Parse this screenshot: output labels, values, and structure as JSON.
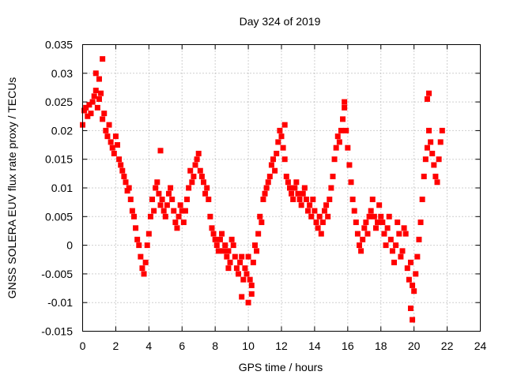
{
  "chart_data": {
    "type": "scatter",
    "title": "Day 324 of 2019",
    "xlabel": "GPS time / hours",
    "ylabel": "GNSS SOLERA EUV flux rate proxy / TECUs",
    "xlim": [
      0,
      24
    ],
    "ylim": [
      -0.015,
      0.035
    ],
    "xticks": [
      "0",
      "2",
      "4",
      "6",
      "8",
      "10",
      "12",
      "14",
      "16",
      "18",
      "20",
      "22",
      "24"
    ],
    "yticks": [
      "-0.015",
      "-0.01",
      "-0.005",
      "0",
      "0.005",
      "0.01",
      "0.015",
      "0.02",
      "0.025",
      "0.03",
      "0.035"
    ],
    "grid": true,
    "legend": "none",
    "marker": "square",
    "color": "#ff0000",
    "series": [
      {
        "x": [
          0.0,
          0.1,
          0.2,
          0.3,
          0.4,
          0.5,
          0.6,
          0.7,
          0.8,
          0.9,
          1.0,
          1.1,
          1.2,
          1.3,
          1.4,
          1.5,
          1.6,
          1.7,
          1.8,
          1.9,
          2.0,
          2.1,
          2.2,
          2.3,
          2.4,
          2.5,
          2.6,
          2.7,
          2.8,
          2.9,
          3.0,
          3.1,
          3.2,
          3.3,
          3.4,
          3.5,
          3.6,
          3.7,
          3.8,
          3.9,
          4.0,
          4.1,
          4.2,
          4.3,
          4.4,
          4.5,
          4.6,
          4.7,
          4.8,
          4.9,
          5.0,
          5.1,
          5.2,
          5.3,
          5.4,
          5.5,
          5.6,
          5.7,
          5.8,
          5.9,
          6.0,
          6.1,
          6.2,
          6.3,
          6.4,
          6.5,
          6.6,
          6.7,
          6.8,
          6.9,
          7.0,
          7.1,
          7.2,
          7.3,
          7.4,
          7.5,
          7.6,
          7.7,
          7.8,
          7.9,
          8.0,
          8.1,
          8.2,
          8.3,
          8.4,
          8.5,
          8.6,
          8.7,
          8.8,
          8.9,
          9.0,
          9.1,
          9.2,
          9.3,
          9.4,
          9.5,
          9.6,
          9.7,
          9.8,
          9.9,
          10.0,
          10.1,
          10.2,
          10.3,
          10.4,
          10.5,
          10.6,
          10.7,
          10.8,
          10.9,
          11.0,
          11.1,
          11.2,
          11.3,
          11.4,
          11.5,
          11.6,
          11.7,
          11.8,
          11.9,
          12.0,
          12.1,
          12.2,
          12.3,
          12.4,
          12.5,
          12.6,
          12.7,
          12.8,
          12.9,
          13.0,
          13.1,
          13.2,
          13.3,
          13.4,
          13.5,
          13.6,
          13.7,
          13.8,
          13.9,
          14.0,
          14.1,
          14.2,
          14.3,
          14.4,
          14.5,
          14.6,
          14.7,
          14.8,
          14.9,
          15.0,
          15.1,
          15.2,
          15.3,
          15.4,
          15.5,
          15.6,
          15.7,
          15.8,
          15.9,
          16.0,
          16.1,
          16.2,
          16.3,
          16.4,
          16.5,
          16.6,
          16.7,
          16.8,
          16.9,
          17.0,
          17.1,
          17.2,
          17.3,
          17.4,
          17.5,
          17.6,
          17.7,
          17.8,
          17.9,
          18.0,
          18.1,
          18.2,
          18.3,
          18.4,
          18.5,
          18.6,
          18.7,
          18.8,
          18.9,
          19.0,
          19.1,
          19.2,
          19.3,
          19.4,
          19.5,
          19.6,
          19.7,
          19.8,
          19.9,
          20.0,
          20.1,
          20.2,
          20.3,
          20.4,
          20.5,
          20.6,
          20.7,
          20.8,
          20.9,
          21.0,
          21.1,
          21.2,
          21.3,
          21.4,
          21.5,
          21.6,
          21.7,
          1.2,
          0.8,
          1.0,
          4.7,
          8.8,
          9.6,
          10.0,
          10.2,
          19.9,
          19.8,
          20.9,
          20.8,
          15.8,
          12.2
        ],
        "y": [
          0.021,
          0.0235,
          0.024,
          0.0225,
          0.0245,
          0.023,
          0.025,
          0.026,
          0.027,
          0.024,
          0.0255,
          0.0265,
          0.022,
          0.023,
          0.02,
          0.019,
          0.021,
          0.018,
          0.017,
          0.016,
          0.019,
          0.0175,
          0.015,
          0.014,
          0.013,
          0.012,
          0.011,
          0.0095,
          0.01,
          0.008,
          0.006,
          0.005,
          0.003,
          0.001,
          0.0,
          -0.002,
          -0.004,
          -0.005,
          -0.003,
          0.0,
          0.002,
          0.005,
          0.008,
          0.006,
          0.01,
          0.011,
          0.009,
          0.007,
          0.008,
          0.006,
          0.005,
          0.007,
          0.009,
          0.01,
          0.008,
          0.006,
          0.004,
          0.003,
          0.005,
          0.007,
          0.006,
          0.004,
          0.006,
          0.008,
          0.01,
          0.013,
          0.011,
          0.012,
          0.014,
          0.015,
          0.016,
          0.013,
          0.012,
          0.011,
          0.009,
          0.01,
          0.008,
          0.005,
          0.003,
          0.002,
          0.001,
          0.0,
          -0.001,
          0.001,
          0.002,
          -0.001,
          0.0,
          -0.002,
          -0.001,
          -0.003,
          0.001,
          0.0,
          -0.002,
          -0.004,
          -0.005,
          -0.003,
          -0.002,
          -0.006,
          -0.004,
          -0.005,
          -0.002,
          -0.006,
          -0.007,
          -0.003,
          0.0,
          -0.001,
          0.002,
          0.005,
          0.004,
          0.008,
          0.009,
          0.01,
          0.011,
          0.012,
          0.014,
          0.015,
          0.013,
          0.016,
          0.018,
          0.02,
          0.019,
          0.017,
          0.015,
          0.012,
          0.011,
          0.01,
          0.009,
          0.008,
          0.01,
          0.011,
          0.009,
          0.008,
          0.007,
          0.009,
          0.01,
          0.008,
          0.006,
          0.007,
          0.005,
          0.008,
          0.006,
          0.004,
          0.003,
          0.005,
          0.002,
          0.004,
          0.006,
          0.007,
          0.005,
          0.008,
          0.01,
          0.012,
          0.015,
          0.017,
          0.019,
          0.018,
          0.02,
          0.022,
          0.024,
          0.02,
          0.017,
          0.014,
          0.011,
          0.008,
          0.006,
          0.004,
          0.002,
          0.0,
          -0.001,
          0.001,
          0.003,
          0.004,
          0.002,
          0.005,
          0.006,
          0.008,
          0.005,
          0.003,
          0.004,
          0.007,
          0.005,
          0.004,
          0.002,
          0.0,
          0.003,
          0.005,
          0.001,
          -0.001,
          -0.003,
          0.0,
          0.004,
          0.002,
          -0.002,
          -0.001,
          0.003,
          0.002,
          -0.004,
          -0.006,
          -0.003,
          -0.007,
          -0.008,
          -0.005,
          -0.002,
          0.001,
          0.004,
          0.008,
          0.012,
          0.015,
          0.017,
          0.02,
          0.018,
          0.016,
          0.014,
          0.012,
          0.011,
          0.015,
          0.018,
          0.02,
          0.0325,
          0.03,
          0.029,
          0.0165,
          -0.004,
          -0.009,
          -0.01,
          -0.0085,
          -0.013,
          -0.011,
          0.0265,
          0.0255,
          0.025,
          0.021
        ]
      }
    ]
  }
}
